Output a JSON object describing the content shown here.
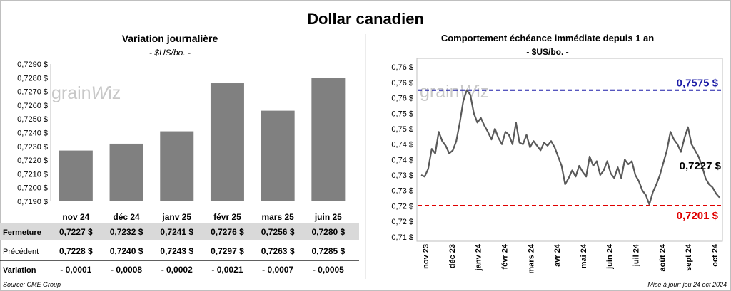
{
  "page": {
    "title": "Dollar canadien",
    "source": "Source: CME Group",
    "updated": "Mise à jour: jeu 24 oct 2024",
    "watermark": "grainwiz"
  },
  "colors": {
    "bar": "#808080",
    "line": "#595959",
    "high_line": "#1f1fa8",
    "low_line": "#e00000",
    "negative": "#e00000",
    "table_band": "#d9d9d9"
  },
  "chart_data": [
    {
      "type": "bar",
      "title": "Variation  journalière",
      "subtitle": "- $US/bo. -",
      "categories": [
        "nov 24",
        "déc 24",
        "janv 25",
        "févr 25",
        "mars 25",
        "juin 25"
      ],
      "values": [
        0.7227,
        0.7232,
        0.7241,
        0.7276,
        0.7256,
        0.728
      ],
      "ylim": [
        0.719,
        0.729
      ],
      "yticks": [
        "0,7190 $",
        "0,7200 $",
        "0,7210 $",
        "0,7220 $",
        "0,7230 $",
        "0,7240 $",
        "0,7250 $",
        "0,7260 $",
        "0,7270 $",
        "0,7280 $",
        "0,7290 $"
      ],
      "table": {
        "rows": [
          {
            "label": "Fermeture",
            "cells": [
              "0,7227  $",
              "0,7232  $",
              "0,7241  $",
              "0,7276  $",
              "0,7256  $",
              "0,7280  $"
            ]
          },
          {
            "label": "Précédent",
            "cells": [
              "0,7228 $",
              "0,7240 $",
              "0,7243 $",
              "0,7297 $",
              "0,7263 $",
              "0,7285 $"
            ]
          },
          {
            "label": "Variation",
            "cells": [
              "- 0,0001",
              "- 0,0008",
              "- 0,0002",
              "- 0,0021",
              "- 0,0007",
              "- 0,0005"
            ]
          }
        ]
      }
    },
    {
      "type": "line",
      "title": "Comportement échéance immédiate depuis 1 an",
      "subtitle": "- $US/bo. -",
      "ylim": [
        0.71,
        0.76
      ],
      "ytick_values": [
        0.71,
        0.715,
        0.72,
        0.725,
        0.73,
        0.735,
        0.74,
        0.745,
        0.75,
        0.755,
        0.76,
        0.765
      ],
      "yticks": [
        "0,71 $",
        "0,72 $",
        "0,72 $",
        "0,73 $",
        "0,73 $",
        "0,74 $",
        "0,74 $",
        "0,75 $",
        "0,75 $",
        "0,76 $",
        "0,76 $",
        "0,76 $"
      ],
      "xticks": [
        "nov 23",
        "déc 23",
        "janv 24",
        "févr 24",
        "mars 24",
        "avr 24",
        "mai 24",
        "juin 24",
        "juil 24",
        "août 24",
        "sept 24",
        "oct 24"
      ],
      "high": {
        "value": 0.7575,
        "label": "0,7575 $"
      },
      "low": {
        "value": 0.7201,
        "label": "0,7201 $"
      },
      "last": {
        "value": 0.7227,
        "label": "0,7227 $"
      },
      "series": [
        {
          "x_start": "2023-10-25",
          "x_end": "2024-10-24",
          "values": [
            0.73,
            0.7295,
            0.732,
            0.7385,
            0.737,
            0.744,
            0.741,
            0.7395,
            0.737,
            0.738,
            0.741,
            0.747,
            0.754,
            0.7575,
            0.756,
            0.75,
            0.747,
            0.7485,
            0.746,
            0.744,
            0.7415,
            0.745,
            0.742,
            0.74,
            0.744,
            0.743,
            0.74,
            0.747,
            0.7405,
            0.74,
            0.743,
            0.739,
            0.741,
            0.7395,
            0.738,
            0.7405,
            0.7395,
            0.741,
            0.739,
            0.736,
            0.733,
            0.727,
            0.729,
            0.7315,
            0.7295,
            0.733,
            0.731,
            0.7295,
            0.736,
            0.733,
            0.7345,
            0.73,
            0.7315,
            0.7345,
            0.7305,
            0.729,
            0.7325,
            0.729,
            0.735,
            0.7335,
            0.7345,
            0.73,
            0.728,
            0.725,
            0.7235,
            0.7205,
            0.7245,
            0.727,
            0.73,
            0.734,
            0.738,
            0.744,
            0.7415,
            0.74,
            0.7375,
            0.742,
            0.7455,
            0.74,
            0.738,
            0.736,
            0.733,
            0.729,
            0.727,
            0.726,
            0.724,
            0.7227
          ]
        }
      ]
    }
  ]
}
